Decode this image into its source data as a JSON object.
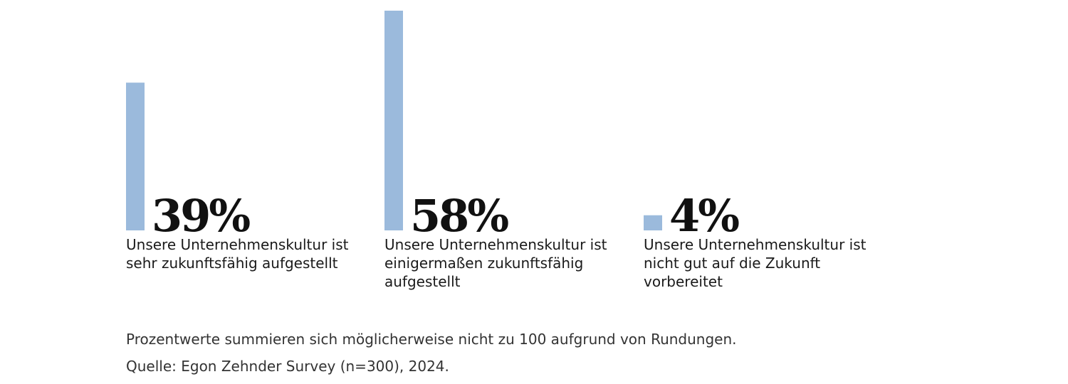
{
  "chart_data": {
    "type": "bar",
    "categories": [
      [
        "Unsere Unternehmenskultur ist",
        "sehr zukunftsfähig aufgestellt"
      ],
      [
        "Unsere Unternehmenskultur ist",
        "einigermaßen zukunftsfähig",
        "aufgestellt"
      ],
      [
        "Unsere Unternehmenskultur ist",
        "nicht gut auf die Zukunft",
        "vorbereitet"
      ]
    ],
    "values": [
      39,
      58,
      4
    ],
    "value_labels": [
      "39%",
      "58%",
      "4%"
    ],
    "ylim": [
      0,
      58
    ],
    "bar_color": "#9bbadc"
  },
  "footnotes": {
    "note": "Prozentwerte summieren sich möglicherweise nicht zu 100 aufgrund von Rundungen.",
    "source": "Quelle: Egon Zehnder Survey (n=300), 2024."
  }
}
